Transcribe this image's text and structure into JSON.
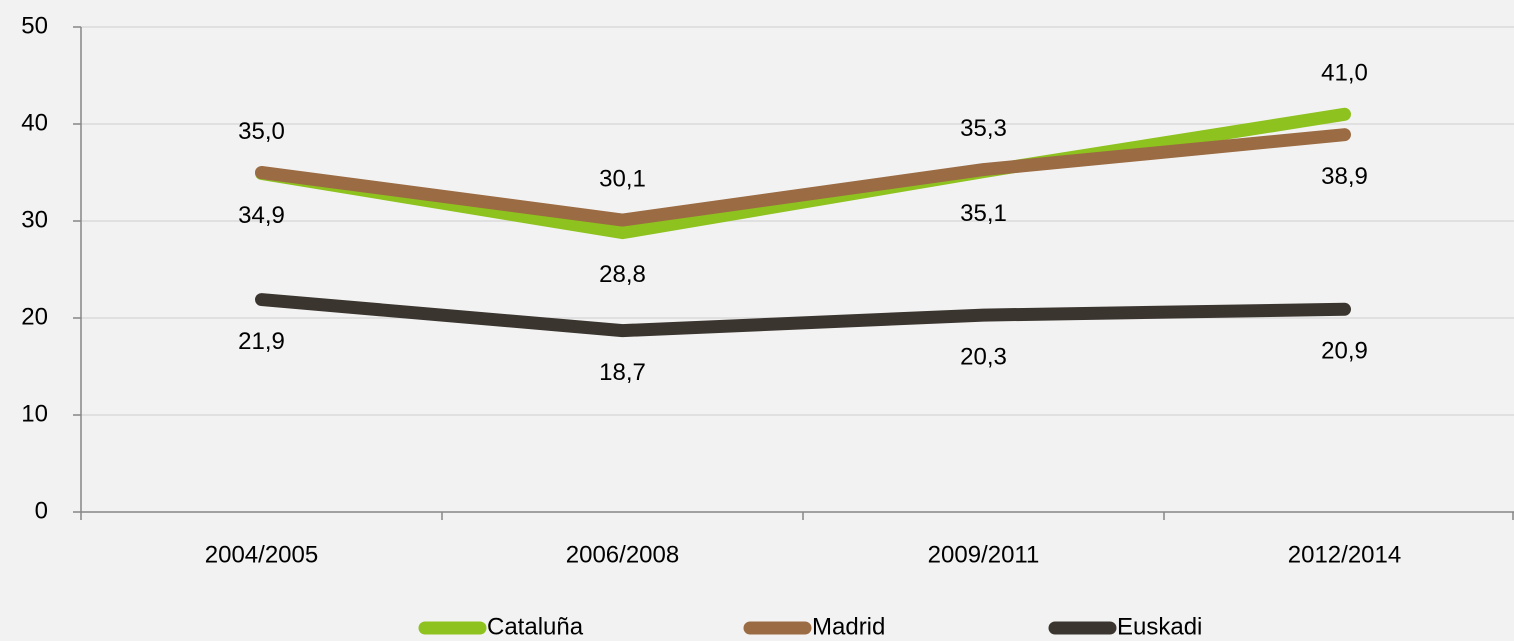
{
  "chart_data": {
    "type": "line",
    "categories": [
      "2004/2005",
      "2006/2008",
      "2009/2011",
      "2012/2014"
    ],
    "series": [
      {
        "name": "Cataluña",
        "color": "#8dc21f",
        "values": [
          34.9,
          28.8,
          35.1,
          41.0
        ],
        "value_labels": [
          "34,9",
          "28,8",
          "35,1",
          "41,0"
        ]
      },
      {
        "name": "Madrid",
        "color": "#9b6b43",
        "values": [
          35.0,
          30.1,
          35.3,
          38.9
        ],
        "value_labels": [
          "35,0",
          "30,1",
          "35,3",
          "38,9"
        ]
      },
      {
        "name": "Euskadi",
        "color": "#3b3530",
        "values": [
          21.9,
          18.7,
          20.3,
          20.9
        ],
        "value_labels": [
          "21,9",
          "18,7",
          "20,3",
          "20,9"
        ]
      }
    ],
    "ylim": [
      0,
      50
    ],
    "yticks": [
      0,
      10,
      20,
      30,
      40,
      50
    ],
    "grid": true,
    "legend": "bottom"
  }
}
